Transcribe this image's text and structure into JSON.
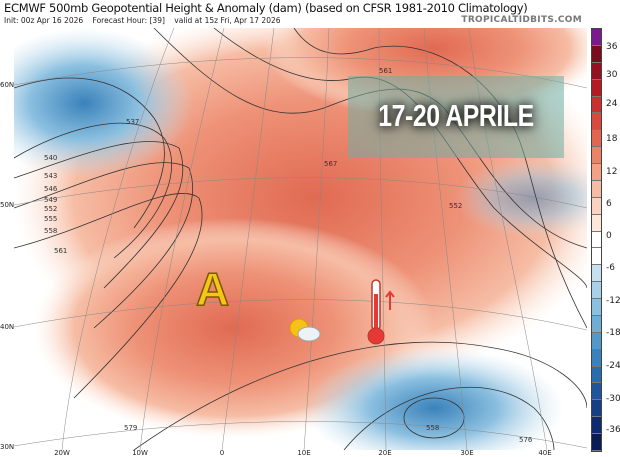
{
  "header": {
    "title": "ECMWF 500mb Geopotential Height & Anomaly (dam) (based on CFSR 1981-2010 Climatology)",
    "init": "Init: 00z Apr 16 2026",
    "forecast_hour": "Forecast Hour: [39]",
    "valid": "valid at 15z Fri, Apr 17 2026",
    "brand": "TROPICALTIDBITS.COM"
  },
  "overlay": {
    "banner_text": "17-20 APRILE",
    "high_pressure_letter": "A",
    "icons": [
      "sun-behind-cloud-icon",
      "thermometer-hot-icon"
    ]
  },
  "map": {
    "lat_labels": [
      "60N",
      "50N",
      "40N",
      "30N"
    ],
    "lon_labels": [
      "20W",
      "10W",
      "0",
      "10E",
      "20E",
      "30E",
      "40E"
    ],
    "contour_labels": [
      "537",
      "540",
      "543",
      "546",
      "549",
      "552",
      "555",
      "558",
      "561",
      "567",
      "561",
      "552",
      "579",
      "558",
      "576"
    ]
  },
  "colorbar": {
    "labels": [
      "36",
      "30",
      "24",
      "18",
      "12",
      "6",
      "0",
      "-6",
      "-12",
      "-18",
      "-24",
      "-30",
      "-36"
    ],
    "colors": [
      "#7b1a8c",
      "#7a0c1e",
      "#96101f",
      "#b51a24",
      "#c9302e",
      "#d84a3c",
      "#e2654f",
      "#eb8366",
      "#f2a182",
      "#f6bba2",
      "#f9d2c0",
      "#fde6da",
      "#ffffff",
      "#ffffff",
      "#c6e0ef",
      "#a8d0e8",
      "#8cc0e0",
      "#6eaed6",
      "#5398c9",
      "#3b82bb",
      "#2b6cae",
      "#1e559c",
      "#153f87",
      "#0d2c70",
      "#081d58"
    ]
  }
}
